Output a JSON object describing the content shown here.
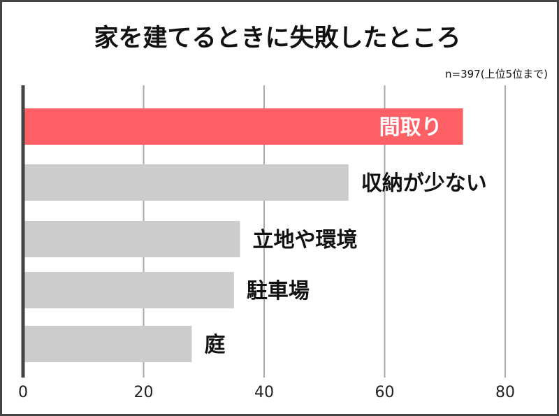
{
  "chart_data": {
    "type": "bar",
    "orientation": "horizontal",
    "title": "家を建てるときに失敗したところ",
    "note": "n=397(上位5位まで)",
    "categories": [
      "間取り",
      "収納が少ない",
      "立地や環境",
      "駐車場",
      "庭"
    ],
    "values": [
      73,
      54,
      36,
      35,
      28
    ],
    "xlim": [
      0,
      80
    ],
    "xticks": [
      "0",
      "20",
      "40",
      "60",
      "80"
    ],
    "grid": true,
    "colors": {
      "highlight": "#ff6066",
      "default": "#cccccc",
      "grid": "#aaaaaa",
      "axis": "#444444"
    }
  }
}
